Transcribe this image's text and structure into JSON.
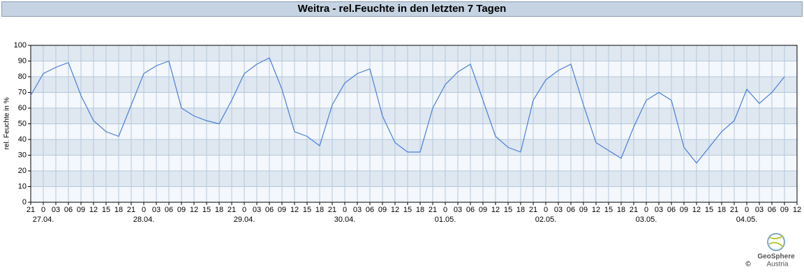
{
  "chart_data": {
    "type": "line",
    "title": "Weitra - rel.Feuchte in den letzten 7 Tagen",
    "y_label": "rel. Feuchte in %",
    "categories": [
      "21",
      "0",
      "03",
      "06",
      "09",
      "12",
      "15",
      "18",
      "21",
      "0",
      "03",
      "06",
      "09",
      "12",
      "15",
      "18",
      "21",
      "0",
      "03",
      "06",
      "09",
      "12",
      "15",
      "18",
      "21",
      "0",
      "03",
      "06",
      "09",
      "12",
      "15",
      "18",
      "21",
      "0",
      "03",
      "06",
      "09",
      "12",
      "15",
      "18",
      "21",
      "0",
      "03",
      "06",
      "09",
      "12",
      "15",
      "18",
      "21",
      "0",
      "03",
      "06",
      "09",
      "12",
      "15",
      "18",
      "21",
      "0",
      "03",
      "06",
      "09",
      "12"
    ],
    "date_labels": [
      "27.04.",
      "28.04.",
      "29.04.",
      "30.04.",
      "01.05.",
      "02.05.",
      "03.05.",
      "04.05."
    ],
    "series": [
      {
        "name": "rel. Feuchte",
        "color": "#4a7fd6",
        "values": [
          68,
          82,
          86,
          89,
          68,
          52,
          45,
          42,
          62,
          82,
          87,
          90,
          60,
          55,
          52,
          50,
          65,
          82,
          88,
          92,
          72,
          45,
          42,
          36,
          62,
          76,
          82,
          85,
          55,
          38,
          32,
          32,
          60,
          75,
          83,
          88,
          65,
          42,
          35,
          32,
          65,
          78,
          84,
          88,
          62,
          38,
          33,
          28,
          48,
          65,
          70,
          65,
          35,
          25,
          35,
          45,
          52,
          72,
          63,
          70,
          80,
          null
        ]
      }
    ],
    "ylim": [
      0,
      100
    ],
    "yticks": [
      0,
      10,
      20,
      30,
      40,
      50,
      60,
      70,
      80,
      90,
      100
    ],
    "grid": true,
    "footer": {
      "logo_name": "GeoSphere",
      "logo_sub": "Austria",
      "copyright": "©"
    }
  }
}
